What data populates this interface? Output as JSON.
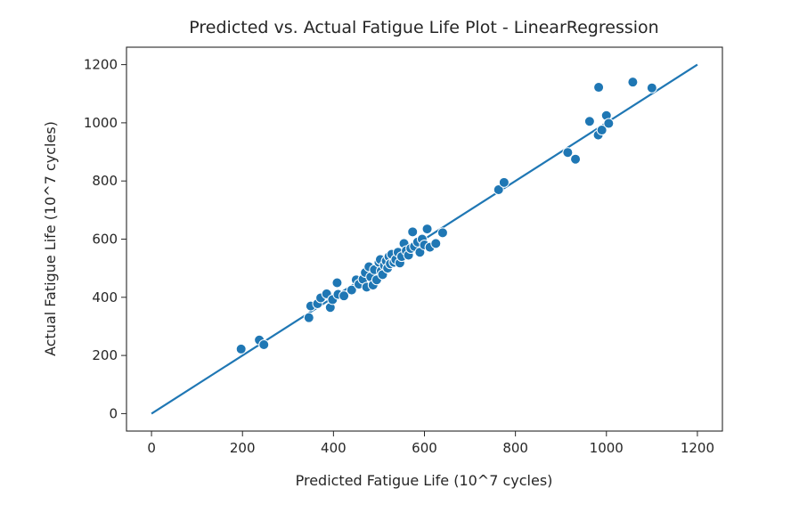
{
  "chart_data": {
    "type": "scatter",
    "title": "Predicted vs. Actual Fatigue Life Plot - LinearRegression",
    "xlabel": "Predicted Fatigue Life (10^7 cycles)",
    "ylabel": "Actual Fatigue Life (10^7 cycles)",
    "xlim": [
      -55,
      1255
    ],
    "ylim": [
      -60,
      1260
    ],
    "x_ticks": [
      0,
      200,
      400,
      600,
      800,
      1000,
      1200
    ],
    "y_ticks": [
      0,
      200,
      400,
      600,
      800,
      1000,
      1200
    ],
    "grid": false,
    "reference_line": {
      "x": [
        0,
        1200
      ],
      "y": [
        0,
        1200
      ]
    },
    "colors": {
      "marker": "#1f77b4",
      "marker_edge": "#ffffff",
      "line": "#1f77b4",
      "axes": "#262626"
    },
    "points": [
      {
        "x": 197,
        "y": 222
      },
      {
        "x": 237,
        "y": 253
      },
      {
        "x": 247,
        "y": 237
      },
      {
        "x": 346,
        "y": 330
      },
      {
        "x": 350,
        "y": 370
      },
      {
        "x": 365,
        "y": 378
      },
      {
        "x": 372,
        "y": 398
      },
      {
        "x": 385,
        "y": 412
      },
      {
        "x": 393,
        "y": 365
      },
      {
        "x": 398,
        "y": 392
      },
      {
        "x": 408,
        "y": 450
      },
      {
        "x": 410,
        "y": 410
      },
      {
        "x": 423,
        "y": 405
      },
      {
        "x": 440,
        "y": 425
      },
      {
        "x": 450,
        "y": 460
      },
      {
        "x": 456,
        "y": 445
      },
      {
        "x": 465,
        "y": 462
      },
      {
        "x": 470,
        "y": 485
      },
      {
        "x": 473,
        "y": 435
      },
      {
        "x": 478,
        "y": 505
      },
      {
        "x": 482,
        "y": 470
      },
      {
        "x": 487,
        "y": 442
      },
      {
        "x": 490,
        "y": 495
      },
      {
        "x": 495,
        "y": 460
      },
      {
        "x": 500,
        "y": 520
      },
      {
        "x": 503,
        "y": 530
      },
      {
        "x": 505,
        "y": 490
      },
      {
        "x": 508,
        "y": 478
      },
      {
        "x": 512,
        "y": 510
      },
      {
        "x": 516,
        "y": 525
      },
      {
        "x": 519,
        "y": 500
      },
      {
        "x": 522,
        "y": 540
      },
      {
        "x": 525,
        "y": 515
      },
      {
        "x": 528,
        "y": 548
      },
      {
        "x": 533,
        "y": 520
      },
      {
        "x": 537,
        "y": 530
      },
      {
        "x": 542,
        "y": 555
      },
      {
        "x": 546,
        "y": 518
      },
      {
        "x": 550,
        "y": 540
      },
      {
        "x": 555,
        "y": 585
      },
      {
        "x": 560,
        "y": 560
      },
      {
        "x": 565,
        "y": 545
      },
      {
        "x": 570,
        "y": 568
      },
      {
        "x": 574,
        "y": 625
      },
      {
        "x": 578,
        "y": 575
      },
      {
        "x": 585,
        "y": 590
      },
      {
        "x": 590,
        "y": 555
      },
      {
        "x": 595,
        "y": 600
      },
      {
        "x": 600,
        "y": 580
      },
      {
        "x": 606,
        "y": 635
      },
      {
        "x": 612,
        "y": 572
      },
      {
        "x": 625,
        "y": 585
      },
      {
        "x": 640,
        "y": 622
      },
      {
        "x": 763,
        "y": 770
      },
      {
        "x": 775,
        "y": 795
      },
      {
        "x": 915,
        "y": 898
      },
      {
        "x": 932,
        "y": 875
      },
      {
        "x": 963,
        "y": 1005
      },
      {
        "x": 982,
        "y": 958
      },
      {
        "x": 983,
        "y": 1122
      },
      {
        "x": 990,
        "y": 975
      },
      {
        "x": 1000,
        "y": 1025
      },
      {
        "x": 1005,
        "y": 998
      },
      {
        "x": 1058,
        "y": 1140
      },
      {
        "x": 1100,
        "y": 1120
      }
    ]
  }
}
